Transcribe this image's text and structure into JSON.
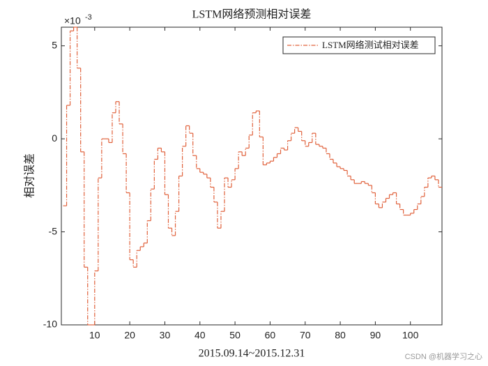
{
  "chart_data": {
    "type": "stairs",
    "title": "LSTM网络预测相对误差",
    "xlabel": "2015.09.14~2015.12.31",
    "ylabel": "相对误差",
    "axis_exponent": {
      "base": "×10",
      "power": "-3"
    },
    "watermark": "CSDN @机器学习之心",
    "x": [
      1,
      2,
      3,
      4,
      5,
      6,
      7,
      8,
      9,
      10,
      11,
      12,
      13,
      14,
      15,
      16,
      17,
      18,
      19,
      20,
      21,
      22,
      23,
      24,
      25,
      26,
      27,
      28,
      29,
      30,
      31,
      32,
      33,
      34,
      35,
      36,
      37,
      38,
      39,
      40,
      41,
      42,
      43,
      44,
      45,
      46,
      47,
      48,
      49,
      50,
      51,
      52,
      53,
      54,
      55,
      56,
      57,
      58,
      59,
      60,
      61,
      62,
      63,
      64,
      65,
      66,
      67,
      68,
      69,
      70,
      71,
      72,
      73,
      74,
      75,
      76,
      77,
      78,
      79,
      80,
      81,
      82,
      83,
      84,
      85,
      86,
      87,
      88,
      89,
      90,
      91,
      92,
      93,
      94,
      95,
      96,
      97,
      98,
      99,
      100,
      101,
      102,
      103,
      104,
      105,
      106,
      107,
      108
    ],
    "series": [
      {
        "name": "LSTM网络测试相对误差",
        "color": "#e0603a",
        "values": [
          -3.6,
          1.8,
          5.8,
          6.0,
          3.8,
          -0.7,
          -6.9,
          -10,
          -10,
          -7.1,
          -2.1,
          0.0,
          0.0,
          -0.2,
          1.4,
          2.0,
          0.8,
          -0.8,
          -2.9,
          -6.5,
          -6.9,
          -6.0,
          -5.8,
          -5.6,
          -4.4,
          -2.7,
          -1.1,
          -0.5,
          -0.7,
          -3.0,
          -4.8,
          -5.2,
          -3.9,
          -2.0,
          -0.4,
          0.7,
          0.3,
          -0.9,
          -1.6,
          -1.8,
          -1.9,
          -2.1,
          -2.6,
          -3.4,
          -4.8,
          -3.9,
          -2.1,
          -2.6,
          -2.2,
          -1.6,
          -0.7,
          -0.9,
          -0.5,
          0.2,
          1.4,
          1.5,
          0.1,
          -1.4,
          -1.3,
          -1.2,
          -1.0,
          -0.8,
          -0.5,
          -0.6,
          -0.1,
          0.3,
          0.6,
          0.4,
          -0.1,
          -0.4,
          -0.2,
          0.3,
          -0.3,
          -0.4,
          -0.5,
          -0.8,
          -1.1,
          -1.3,
          -1.5,
          -1.6,
          -1.7,
          -2.0,
          -2.2,
          -2.4,
          -2.4,
          -2.3,
          -2.4,
          -2.5,
          -2.9,
          -3.5,
          -3.7,
          -3.4,
          -3.2,
          -3.0,
          -2.9,
          -3.5,
          -3.8,
          -4.1,
          -4.1,
          -4.0,
          -3.8,
          -3.5,
          -3.1,
          -2.6,
          -2.1,
          -2.0,
          -2.2,
          -2.6
        ]
      }
    ],
    "xlim": [
      0.5,
      109
    ],
    "xticks": [
      10,
      20,
      30,
      40,
      50,
      60,
      70,
      80,
      90,
      100
    ],
    "ylim": [
      -10,
      6
    ],
    "yticks": [
      -10,
      -5,
      0,
      5
    ],
    "legend": "northeast"
  }
}
